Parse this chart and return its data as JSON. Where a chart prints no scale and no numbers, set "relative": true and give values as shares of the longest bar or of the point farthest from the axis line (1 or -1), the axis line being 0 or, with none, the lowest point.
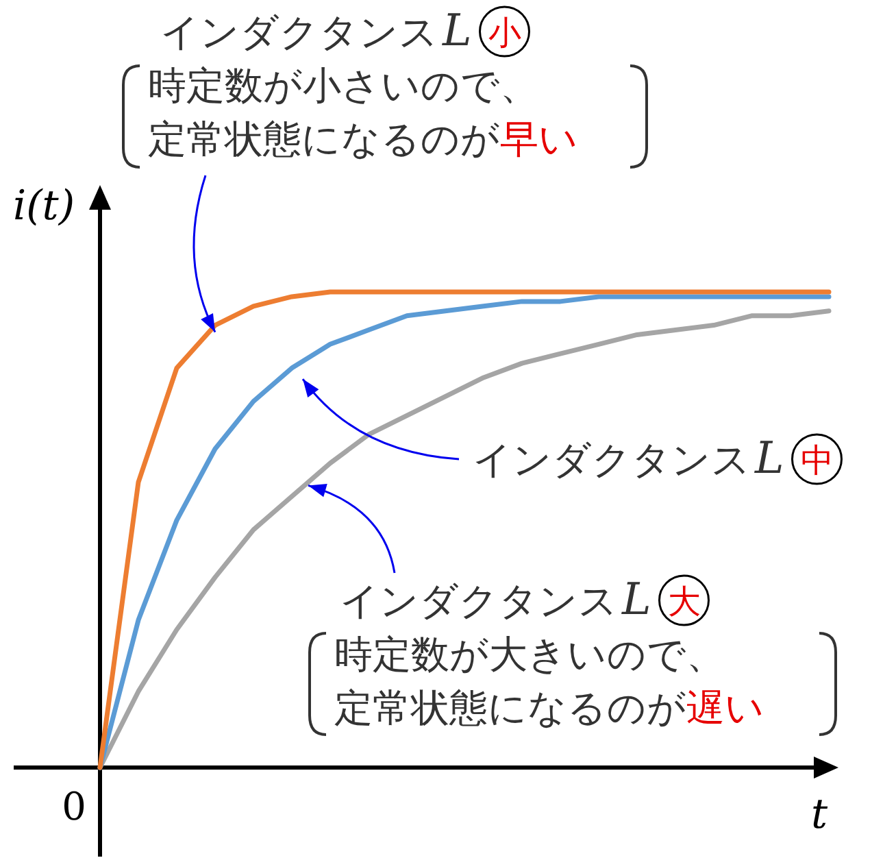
{
  "chart_data": {
    "type": "line",
    "relative": true,
    "xlabel": "t",
    "ylabel": "i(t)",
    "categories": [
      null,
      null,
      null,
      null,
      null,
      null,
      null,
      null,
      null,
      null,
      null,
      null,
      null,
      null,
      null,
      null,
      null,
      null,
      null,
      null
    ],
    "series": [
      {
        "color": "#ed7d31",
        "values": [
          0,
          0.6,
          0.84,
          0.93,
          0.97,
          0.99,
          1,
          1,
          1,
          1,
          1,
          1,
          1,
          1,
          1,
          1,
          1,
          1,
          1,
          1
        ]
      },
      {
        "color": "#5b9bd5",
        "values": [
          0,
          0.31,
          0.52,
          0.67,
          0.77,
          0.84,
          0.89,
          0.92,
          0.95,
          0.96,
          0.97,
          0.98,
          0.98,
          0.99,
          0.99,
          0.99,
          0.99,
          0.99,
          0.99,
          0.99
        ]
      },
      {
        "color": "#a5a5a5",
        "values": [
          0,
          0.16,
          0.29,
          0.4,
          0.5,
          0.57,
          0.64,
          0.7,
          0.74,
          0.78,
          0.82,
          0.85,
          0.87,
          0.89,
          0.91,
          0.92,
          0.93,
          0.95,
          0.95,
          0.96
        ]
      }
    ],
    "annotations": [
      "インダクタンス",
      "L",
      "小",
      "時定数が小さいので、",
      "定常状態になるのが",
      "早い",
      "インダクタンス",
      "L",
      "中",
      "インダクタンス",
      "L",
      "大",
      "時定数が大きいので、",
      "定常状態になるのが",
      "遅い",
      "0"
    ]
  }
}
